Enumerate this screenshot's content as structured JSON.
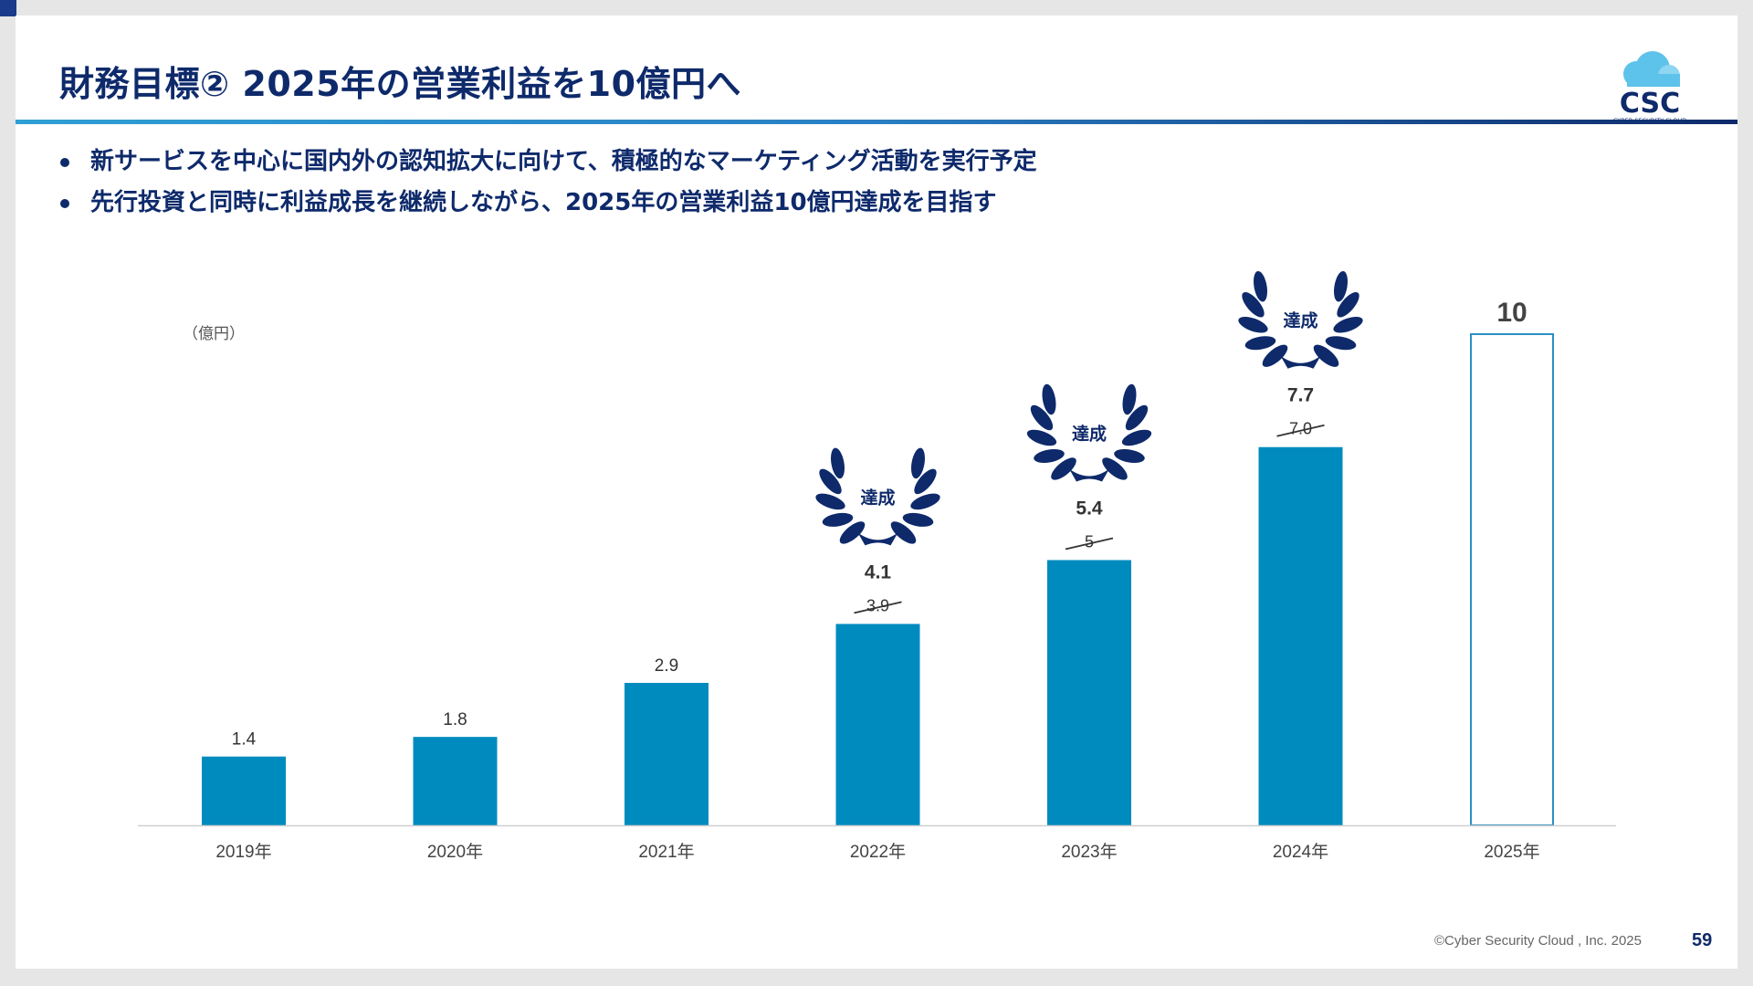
{
  "page": {
    "title": "財務目標② 2025年の営業利益を10億円へ",
    "bullets": [
      "新サービスを中心に国内外の認知拡大に向けて、積極的なマーケティング活動を実行予定",
      "先行投資と同時に利益成長を継続しながら、2025年の営業利益10億円達成を目指す"
    ],
    "logo_text": "CSC",
    "logo_subtext": "CYBER SECURITY CLOUD",
    "footer": "©Cyber Security Cloud , Inc. 2025",
    "page_number": "59"
  },
  "colors": {
    "navy": "#0e2a6b",
    "bar": "#008bbf",
    "target_outline": "#2b8fc4"
  },
  "chart_data": {
    "type": "bar",
    "unit_label": "（億円）",
    "categories": [
      "2019年",
      "2020年",
      "2021年",
      "2022年",
      "2023年",
      "2024年",
      "2025年"
    ],
    "values": [
      1.4,
      1.8,
      2.9,
      4.1,
      5.4,
      7.7,
      10
    ],
    "value_labels": [
      "1.4",
      "1.8",
      "2.9",
      "4.1",
      "5.4",
      "7.7",
      "10"
    ],
    "targets": [
      null,
      null,
      null,
      3.9,
      5,
      7.0,
      null
    ],
    "target_labels": [
      null,
      null,
      null,
      "3.9",
      "5",
      "7.0",
      null
    ],
    "achieved": [
      false,
      false,
      false,
      true,
      true,
      true,
      false
    ],
    "achieved_label": "達成",
    "forecast": [
      false,
      false,
      false,
      false,
      false,
      false,
      true
    ],
    "ylim": [
      0,
      10.5
    ]
  }
}
